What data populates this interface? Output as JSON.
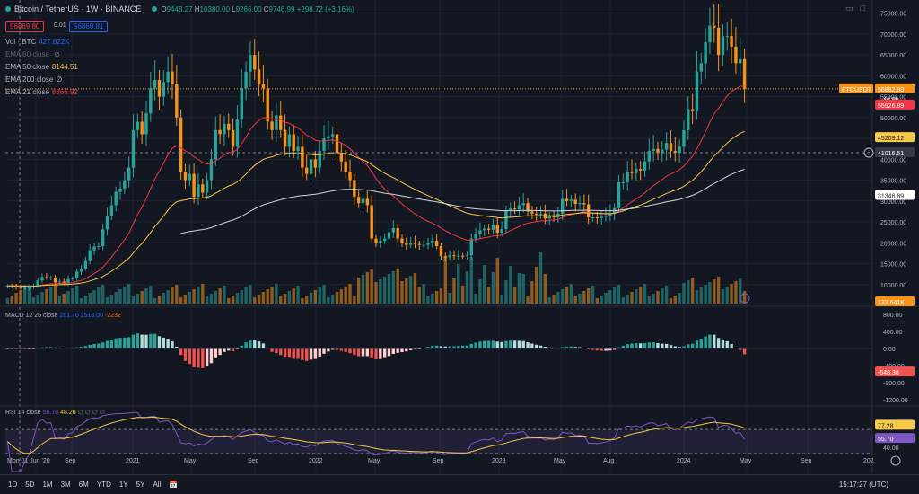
{
  "header": {
    "symbol": "Bitcoin / TetherUS · 1W · BINANCE",
    "open_label": "O",
    "open": "9448.27",
    "high_label": "H",
    "high": "10380.00",
    "low_label": "L",
    "low": "9266.00",
    "close_label": "C",
    "close": "9746.99",
    "change": "+298.72 (+3.16%)",
    "sell_price": "56869.80",
    "spread": "0.01",
    "buy_price": "56869.81"
  },
  "indicators": [
    {
      "label": "Vol · BTC",
      "value": "427.822K",
      "color": "#2962ff"
    },
    {
      "label": "EMA 60 close",
      "value": "",
      "color": "#787b86",
      "hidden": true
    },
    {
      "label": "EMA 50 close",
      "value": "8144.51",
      "color": "#f7c948"
    },
    {
      "label": "EMA 200 close",
      "value": "∅",
      "color": "#d1d4dc"
    },
    {
      "label": "EMA 21 close",
      "value": "8366.92",
      "color": "#f23645"
    }
  ],
  "price_axis": [
    "75000.00",
    "70000.00",
    "65000.00",
    "60000.00",
    "55000.00",
    "50000.00",
    "45000.00",
    "40000.00",
    "35000.00",
    "30000.00",
    "25000.00",
    "20000.00",
    "15000.00",
    "10000.00"
  ],
  "price_tags": {
    "symbol_tag": "BTCUSDT",
    "last_price": "56882.80",
    "countdown": "4d 9h",
    "ema21": "55926.89",
    "ema50": "45209.12",
    "crosshair": "41016.51",
    "ema200": "31346.89",
    "volume": "133.641K"
  },
  "macd": {
    "legend": "MACD 12 26 close",
    "values": [
      "281.70",
      "2513.00",
      "-2232"
    ],
    "axis": [
      "800.00",
      "400.00",
      "0.00",
      "-400.00",
      "-800.00",
      "-1200.00"
    ],
    "tag": "-548.38"
  },
  "rsi": {
    "legend": "RSI 14 close",
    "values": [
      "58.78",
      "48.26",
      "∅ ∅ ∅ ∅"
    ],
    "axis": [
      "40.00"
    ],
    "tag1": "77.28",
    "tag2": "55.70"
  },
  "time_axis": [
    "Mon 01 Jun '20",
    "Sep",
    "2021",
    "May",
    "Sep",
    "2022",
    "May",
    "Sep",
    "2023",
    "May",
    "Aug",
    "2024",
    "May",
    "Sep",
    "202"
  ],
  "bottom_bar": {
    "ranges": [
      "1D",
      "5D",
      "1M",
      "3M",
      "6M",
      "YTD",
      "1Y",
      "5Y",
      "All"
    ],
    "time": "15:17:27 (UTC)"
  },
  "chart_data": {
    "type": "candlestick",
    "closes": [
      9700,
      9600,
      9300,
      9100,
      9200,
      9300,
      9700,
      11000,
      11800,
      11600,
      11700,
      10500,
      10700,
      10400,
      11300,
      11500,
      13100,
      13800,
      15600,
      18200,
      19100,
      19200,
      23200,
      26500,
      29000,
      32200,
      33000,
      35000,
      38000,
      47000,
      49000,
      46000,
      51000,
      57000,
      59000,
      55000,
      58500,
      61000,
      58000,
      50000,
      37000,
      35000,
      36500,
      31000,
      34000,
      32000,
      35000,
      40000,
      47000,
      46000,
      48500,
      47000,
      43000,
      49500,
      57000,
      61000,
      65000,
      61500,
      58000,
      57000,
      49000,
      47000,
      50500,
      47000,
      43000,
      46000,
      42000,
      43000,
      38000,
      36500,
      40000,
      38000,
      42000,
      45000,
      45500,
      46000,
      41500,
      39500,
      37000,
      35000,
      31000,
      29500,
      30500,
      29000,
      21000,
      20000,
      20500,
      21000,
      22500,
      23500,
      21000,
      20000,
      19500,
      20000,
      19700,
      19500,
      19500,
      20000,
      20500,
      19200,
      16800,
      16500,
      17000,
      16800,
      16900,
      16800,
      17000,
      21000,
      22000,
      23000,
      23400,
      23100,
      24300,
      22400,
      23300,
      27800,
      28200,
      28000,
      29000,
      29500,
      27500,
      27000,
      26800,
      27000,
      25800,
      26300,
      26100,
      27000,
      30500,
      30000,
      30300,
      29300,
      29500,
      29200,
      26100,
      26100,
      25900,
      26200,
      26500,
      27000,
      28300,
      34500,
      34500,
      37000,
      36700,
      37700,
      37300,
      39500,
      42000,
      42500,
      41500,
      42300,
      43900,
      42000,
      41600,
      43000,
      47000,
      52000,
      51500,
      61000,
      63000,
      68000,
      72000,
      71500,
      65000,
      69500,
      69500,
      67000,
      63000,
      64000,
      56882
    ]
  }
}
